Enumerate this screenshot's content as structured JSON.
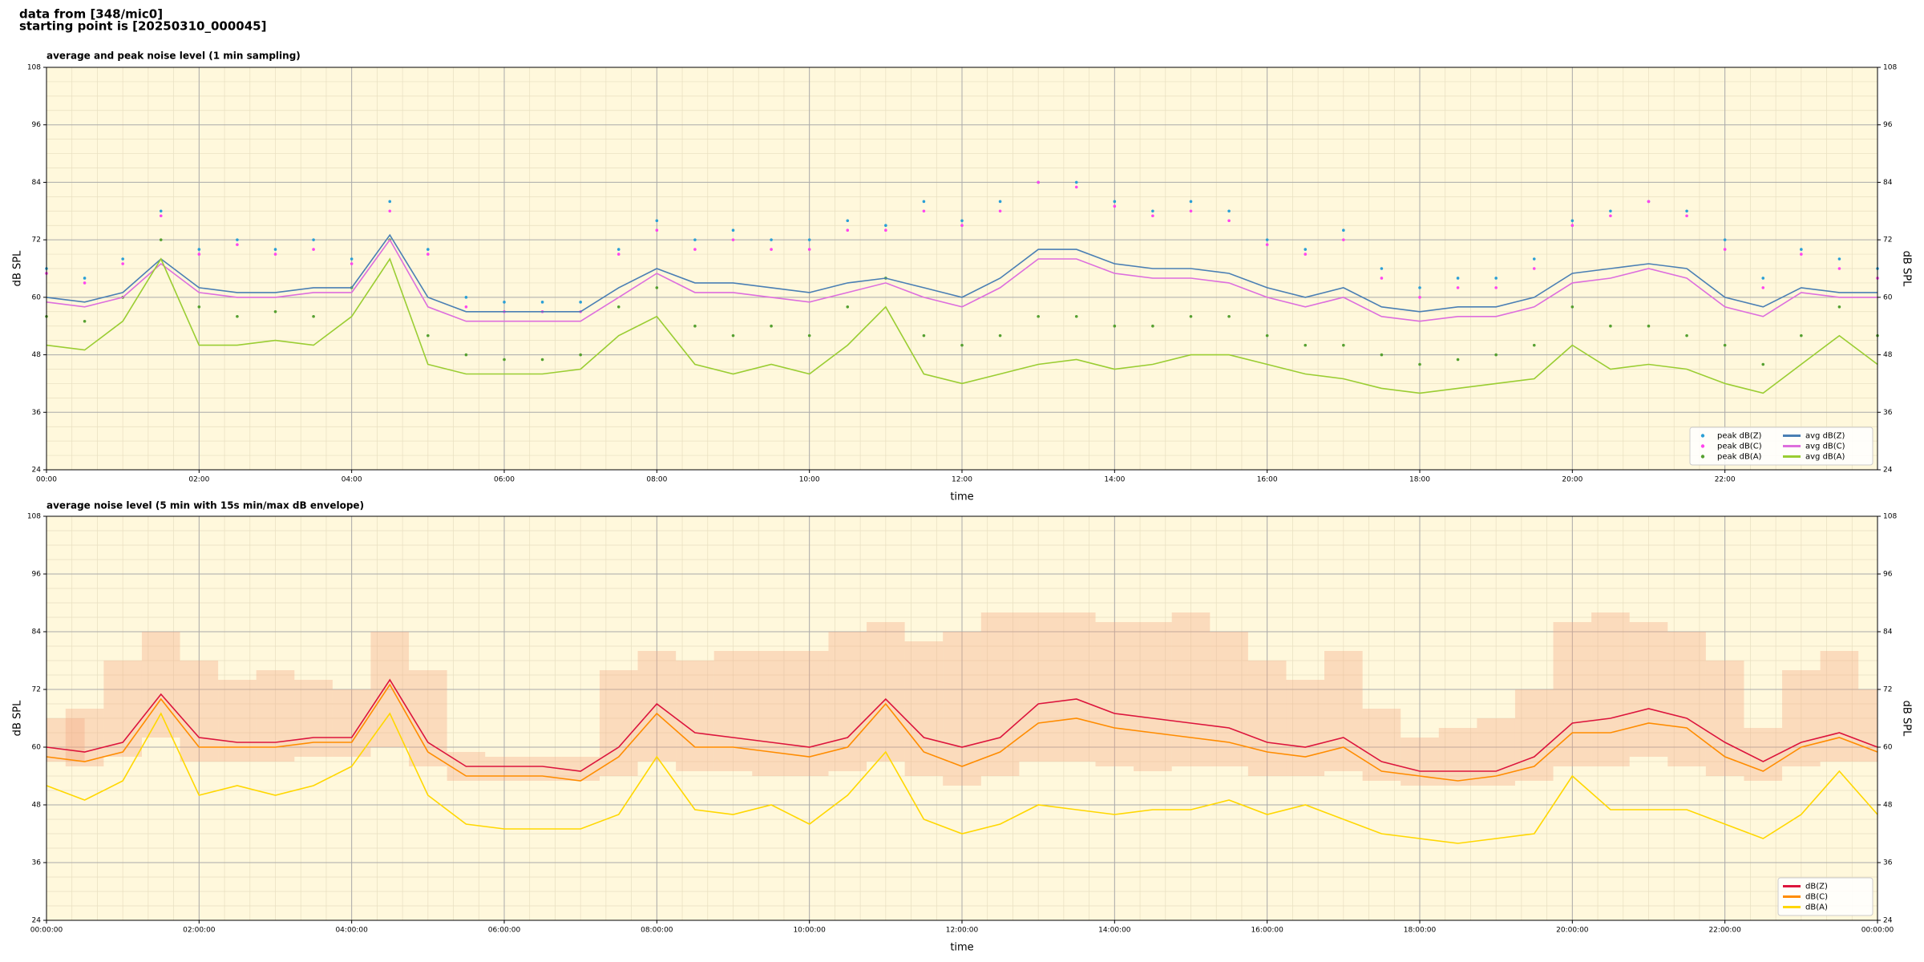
{
  "header": {
    "lines": [
      "data from [348/mic0]",
      "starting point is [20250310_000045]"
    ]
  },
  "chart_data": [
    {
      "type": "line",
      "title": "average and peak noise level (1 min sampling)",
      "xlabel": "time",
      "ylabel": "dB SPL",
      "x": [
        0,
        0.5,
        1,
        1.5,
        2,
        2.5,
        3,
        3.5,
        4,
        4.5,
        5,
        5.5,
        6,
        6.5,
        7,
        7.5,
        8,
        8.5,
        9,
        9.5,
        10,
        10.5,
        11,
        11.5,
        12,
        12.5,
        13,
        13.5,
        14,
        14.5,
        15,
        15.5,
        16,
        16.5,
        17,
        17.5,
        18,
        18.5,
        19,
        19.5,
        20,
        20.5,
        21,
        21.5,
        22,
        22.5,
        23,
        23.5,
        24
      ],
      "xlim": [
        0,
        24
      ],
      "xticks": [
        {
          "value": 0,
          "label": "00:00"
        },
        {
          "value": 2,
          "label": "02:00"
        },
        {
          "value": 4,
          "label": "04:00"
        },
        {
          "value": 6,
          "label": "06:00"
        },
        {
          "value": 8,
          "label": "08:00"
        },
        {
          "value": 10,
          "label": "10:00"
        },
        {
          "value": 12,
          "label": "12:00"
        },
        {
          "value": 14,
          "label": "14:00"
        },
        {
          "value": 16,
          "label": "16:00"
        },
        {
          "value": 18,
          "label": "18:00"
        },
        {
          "value": 20,
          "label": "20:00"
        },
        {
          "value": 22,
          "label": "22:00"
        }
      ],
      "ylim": [
        24,
        108
      ],
      "yticks": [
        24,
        36,
        48,
        60,
        72,
        84,
        96,
        108
      ],
      "grid": true,
      "legend": "lower right",
      "legend_ncol": 2,
      "series": [
        {
          "name": "peak dB(Z)",
          "type": "scatter",
          "color": "#2a9fd6",
          "values": [
            66,
            64,
            68,
            78,
            70,
            72,
            70,
            72,
            68,
            80,
            70,
            60,
            59,
            59,
            59,
            70,
            76,
            72,
            74,
            72,
            72,
            76,
            75,
            80,
            76,
            80,
            84,
            84,
            80,
            78,
            80,
            78,
            72,
            70,
            74,
            66,
            62,
            64,
            64,
            68,
            76,
            78,
            80,
            78,
            72,
            64,
            70,
            68,
            66
          ]
        },
        {
          "name": "peak dB(C)",
          "type": "scatter",
          "color": "#ff44ee",
          "values": [
            65,
            63,
            67,
            77,
            69,
            71,
            69,
            70,
            67,
            78,
            69,
            58,
            57,
            57,
            57,
            69,
            74,
            70,
            72,
            70,
            70,
            74,
            74,
            78,
            75,
            78,
            84,
            83,
            79,
            77,
            78,
            76,
            71,
            69,
            72,
            64,
            60,
            62,
            62,
            66,
            75,
            77,
            80,
            77,
            70,
            62,
            69,
            66,
            64
          ]
        },
        {
          "name": "peak dB(A)",
          "type": "scatter",
          "color": "#55a030",
          "values": [
            56,
            55,
            60,
            72,
            58,
            56,
            57,
            56,
            62,
            72,
            52,
            48,
            47,
            47,
            48,
            58,
            62,
            54,
            52,
            54,
            52,
            58,
            64,
            52,
            50,
            52,
            56,
            56,
            54,
            54,
            56,
            56,
            52,
            50,
            50,
            48,
            46,
            47,
            48,
            50,
            58,
            54,
            54,
            52,
            50,
            46,
            52,
            58,
            52
          ]
        },
        {
          "name": "avg dB(Z)",
          "color": "#4a7fb4",
          "values": [
            60,
            59,
            61,
            68,
            62,
            61,
            61,
            62,
            62,
            73,
            60,
            57,
            57,
            57,
            57,
            62,
            66,
            63,
            63,
            62,
            61,
            63,
            64,
            62,
            60,
            64,
            70,
            70,
            67,
            66,
            66,
            65,
            62,
            60,
            62,
            58,
            57,
            58,
            58,
            60,
            65,
            66,
            67,
            66,
            60,
            58,
            62,
            61,
            61
          ]
        },
        {
          "name": "avg dB(C)",
          "color": "#dd6edd",
          "values": [
            59,
            58,
            60,
            67,
            61,
            60,
            60,
            61,
            61,
            72,
            58,
            55,
            55,
            55,
            55,
            60,
            65,
            61,
            61,
            60,
            59,
            61,
            63,
            60,
            58,
            62,
            68,
            68,
            65,
            64,
            64,
            63,
            60,
            58,
            60,
            56,
            55,
            56,
            56,
            58,
            63,
            64,
            66,
            64,
            58,
            56,
            61,
            60,
            60
          ]
        },
        {
          "name": "avg dB(A)",
          "color": "#9acd32",
          "values": [
            50,
            49,
            55,
            68,
            50,
            50,
            51,
            50,
            56,
            68,
            46,
            44,
            44,
            44,
            45,
            52,
            56,
            46,
            44,
            46,
            44,
            50,
            58,
            44,
            42,
            44,
            46,
            47,
            45,
            46,
            48,
            48,
            46,
            44,
            43,
            41,
            40,
            41,
            42,
            43,
            50,
            45,
            46,
            45,
            42,
            40,
            46,
            52,
            46
          ]
        }
      ]
    },
    {
      "type": "line",
      "title": "average noise level (5 min with 15s min/max dB envelope)",
      "xlabel": "time",
      "ylabel": "dB SPL",
      "x": [
        0,
        0.5,
        1,
        1.5,
        2,
        2.5,
        3,
        3.5,
        4,
        4.5,
        5,
        5.5,
        6,
        6.5,
        7,
        7.5,
        8,
        8.5,
        9,
        9.5,
        10,
        10.5,
        11,
        11.5,
        12,
        12.5,
        13,
        13.5,
        14,
        14.5,
        15,
        15.5,
        16,
        16.5,
        17,
        17.5,
        18,
        18.5,
        19,
        19.5,
        20,
        20.5,
        21,
        21.5,
        22,
        22.5,
        23,
        23.5,
        24
      ],
      "xlim": [
        0,
        24
      ],
      "xticks": [
        {
          "value": 0,
          "label": "00:00:00"
        },
        {
          "value": 2,
          "label": "02:00:00"
        },
        {
          "value": 4,
          "label": "04:00:00"
        },
        {
          "value": 6,
          "label": "06:00:00"
        },
        {
          "value": 8,
          "label": "08:00:00"
        },
        {
          "value": 10,
          "label": "10:00:00"
        },
        {
          "value": 12,
          "label": "12:00:00"
        },
        {
          "value": 14,
          "label": "14:00:00"
        },
        {
          "value": 16,
          "label": "16:00:00"
        },
        {
          "value": 18,
          "label": "18:00:00"
        },
        {
          "value": 20,
          "label": "20:00:00"
        },
        {
          "value": 22,
          "label": "22:00:00"
        },
        {
          "value": 24,
          "label": "00:00:00"
        }
      ],
      "ylim": [
        24,
        108
      ],
      "yticks": [
        24,
        36,
        48,
        60,
        72,
        84,
        96,
        108
      ],
      "grid": true,
      "legend": "lower right",
      "legend_ncol": 1,
      "envelope": {
        "color": "#f4a582",
        "low": [
          57,
          56,
          58,
          62,
          57,
          57,
          57,
          58,
          58,
          60,
          56,
          53,
          53,
          53,
          53,
          54,
          57,
          55,
          55,
          54,
          54,
          55,
          57,
          54,
          52,
          54,
          57,
          57,
          56,
          55,
          56,
          56,
          54,
          54,
          55,
          53,
          52,
          52,
          52,
          53,
          56,
          56,
          58,
          56,
          54,
          53,
          56,
          57,
          57
        ],
        "high": [
          66,
          68,
          78,
          84,
          78,
          74,
          76,
          74,
          72,
          84,
          76,
          59,
          58,
          58,
          58,
          76,
          80,
          78,
          80,
          80,
          80,
          84,
          86,
          82,
          84,
          88,
          88,
          88,
          86,
          86,
          88,
          84,
          78,
          74,
          80,
          68,
          62,
          64,
          66,
          72,
          86,
          88,
          86,
          84,
          78,
          64,
          76,
          80,
          72
        ]
      },
      "series": [
        {
          "name": "dB(Z)",
          "color": "#dc143c",
          "values": [
            60,
            59,
            61,
            71,
            62,
            61,
            61,
            62,
            62,
            74,
            61,
            56,
            56,
            56,
            55,
            60,
            69,
            63,
            62,
            61,
            60,
            62,
            70,
            62,
            60,
            62,
            69,
            70,
            67,
            66,
            65,
            64,
            61,
            60,
            62,
            57,
            55,
            55,
            55,
            58,
            65,
            66,
            68,
            66,
            61,
            57,
            61,
            63,
            60
          ]
        },
        {
          "name": "dB(C)",
          "color": "#ff8c00",
          "values": [
            58,
            57,
            59,
            70,
            60,
            60,
            60,
            61,
            61,
            73,
            59,
            54,
            54,
            54,
            53,
            58,
            67,
            60,
            60,
            59,
            58,
            60,
            69,
            59,
            56,
            59,
            65,
            66,
            64,
            63,
            62,
            61,
            59,
            58,
            60,
            55,
            54,
            53,
            54,
            56,
            63,
            63,
            65,
            64,
            58,
            55,
            60,
            62,
            59
          ]
        },
        {
          "name": "dB(A)",
          "color": "#ffd700",
          "values": [
            52,
            49,
            53,
            67,
            50,
            52,
            50,
            52,
            56,
            67,
            50,
            44,
            43,
            43,
            43,
            46,
            58,
            47,
            46,
            48,
            44,
            50,
            59,
            45,
            42,
            44,
            48,
            47,
            46,
            47,
            47,
            49,
            46,
            48,
            45,
            42,
            41,
            40,
            41,
            42,
            54,
            47,
            47,
            47,
            44,
            41,
            46,
            55,
            46
          ]
        }
      ]
    }
  ]
}
